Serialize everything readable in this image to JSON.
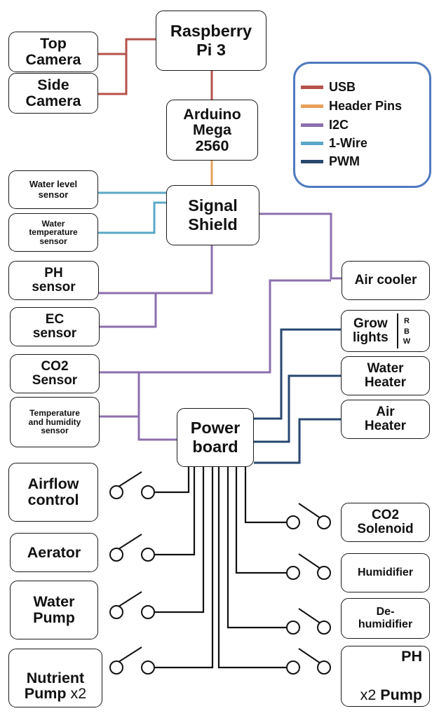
{
  "nodes": {
    "top_camera": "Top\nCamera",
    "side_camera": "Side\nCamera",
    "raspberry_pi": "Raspberry\nPi 3",
    "arduino": "Arduino\nMega\n2560",
    "signal_shield": "Signal\nShield",
    "water_level_sensor": "Water level\nsensor",
    "water_temperature_sensor": "Water\ntemperature\nsensor",
    "ph_sensor": "PH\nsensor",
    "ec_sensor": "EC\nsensor",
    "co2_sensor": "CO2\nSensor",
    "temp_humidity_sensor": "Temperature\nand humidity\nsensor",
    "air_cooler": "Air cooler",
    "grow_lights": "Grow\nlights",
    "grow_lights_channels": [
      "R",
      "B",
      "W"
    ],
    "water_heater": "Water\nHeater",
    "air_heater": "Air\nHeater",
    "power_board": "Power\nboard",
    "airflow_control": "Airflow\ncontrol",
    "aerator": "Aerator",
    "water_pump": "Water\nPump",
    "nutrient_pump_name": "Nutrient\nPump",
    "nutrient_pump_multiplier": "x2",
    "co2_solenoid": "CO2\nSolenoid",
    "humidifier": "Humidifier",
    "dehumidifier": "De-\nhumidifier",
    "ph_pump_top": "PH",
    "ph_pump_multiplier": "x2",
    "ph_pump_bottom": "Pump"
  },
  "legend": [
    {
      "label": "USB",
      "color": "#b5524a"
    },
    {
      "label": "Header Pins",
      "color": "#e8a15a"
    },
    {
      "label": "I2C",
      "color": "#8c6fae"
    },
    {
      "label": "1-Wire",
      "color": "#5ba8c6"
    },
    {
      "label": "PWM",
      "color": "#27476f"
    }
  ],
  "legend_border_color": "#4f7abf",
  "switch_color": "#111111"
}
